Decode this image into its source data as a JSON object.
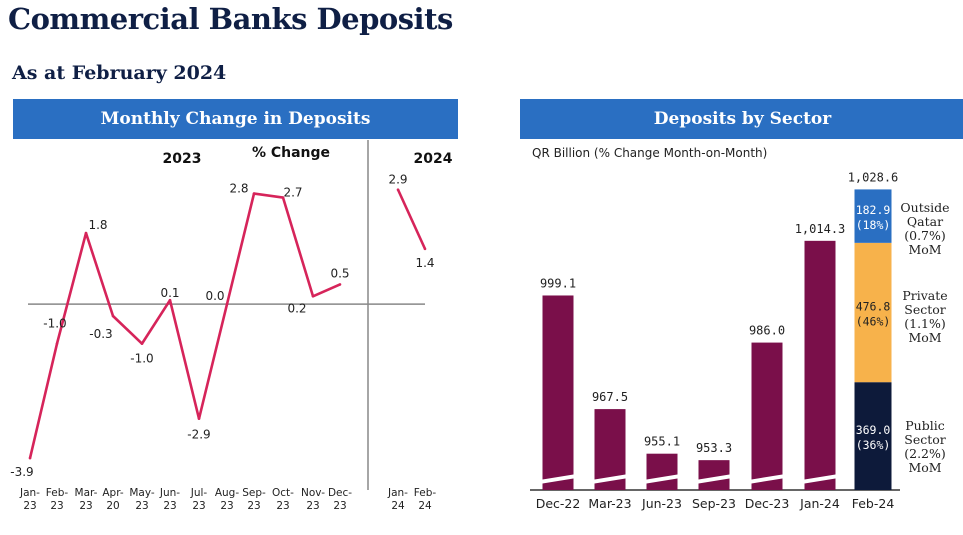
{
  "page": {
    "title": "Commercial Banks Deposits",
    "subtitle": "As at February 2024"
  },
  "chart_data": [
    {
      "type": "line",
      "title": "Monthly Change in Deposits",
      "ylabel": "% Change",
      "year_labels": [
        "2023",
        "2024"
      ],
      "categories": [
        "Jan-23",
        "Feb-23",
        "Mar-23",
        "Apr-20",
        "May-23",
        "Jun-23",
        "Jul-23",
        "Aug-23",
        "Sep-23",
        "Oct-23",
        "Nov-23",
        "Dec-23",
        "Jan-24",
        "Feb-24"
      ],
      "series": [
        {
          "values": [
            -3.9,
            -1.0,
            1.8,
            -0.3,
            -1.0,
            0.1,
            -2.9,
            0.0,
            2.8,
            2.7,
            0.2,
            0.5,
            2.9,
            1.4
          ],
          "labels": [
            "-3.9",
            "-1.0",
            "1.8",
            "-0.3",
            "-1.0",
            "0.1",
            "-2.9",
            "0.0",
            "2.8",
            "2.7",
            "0.2",
            "0.5",
            "2.9",
            "1.4"
          ],
          "color": "#d6245a"
        }
      ],
      "ylim": [
        -4.2,
        3.6
      ]
    },
    {
      "type": "bar",
      "title": "Deposits by Sector",
      "ylabel": "QR Billion (% Change Month-on-Month)",
      "categories": [
        "Dec-22",
        "Mar-23",
        "Jun-23",
        "Sep-23",
        "Dec-23",
        "Jan-24",
        "Feb-24"
      ],
      "values": [
        999.1,
        967.5,
        955.1,
        953.3,
        986.0,
        1014.3,
        1028.6
      ],
      "value_labels": [
        "999.1",
        "967.5",
        "955.1",
        "953.3",
        "986.0",
        "1,014.3",
        "1,028.6"
      ],
      "bar_color": "#7a0f4a",
      "ylim": [
        945,
        1034
      ],
      "axis_break": true,
      "stacked_last": [
        {
          "name": "Public Sector (2.2%) MoM",
          "name_lines": [
            "Public",
            "Sector",
            "(2.2%)",
            "MoM"
          ],
          "value": 369.0,
          "value_label": "369.0",
          "share": "(36%)",
          "color": "#0d1a3a",
          "label_color": "#ffffff"
        },
        {
          "name": "Private Sector (1.1%) MoM",
          "name_lines": [
            "Private",
            "Sector",
            "(1.1%)",
            "MoM"
          ],
          "value": 476.8,
          "value_label": "476.8",
          "share": "(46%)",
          "color": "#f7b24b",
          "label_color": "#222222"
        },
        {
          "name": "Outside Qatar (0.7%) MoM",
          "name_lines": [
            "Outside",
            "Qatar",
            "(0.7%)",
            "MoM"
          ],
          "value": 182.9,
          "value_label": "182.9",
          "share": "(18%)",
          "color": "#2a6fc2",
          "label_color": "#ffffff"
        }
      ]
    }
  ]
}
